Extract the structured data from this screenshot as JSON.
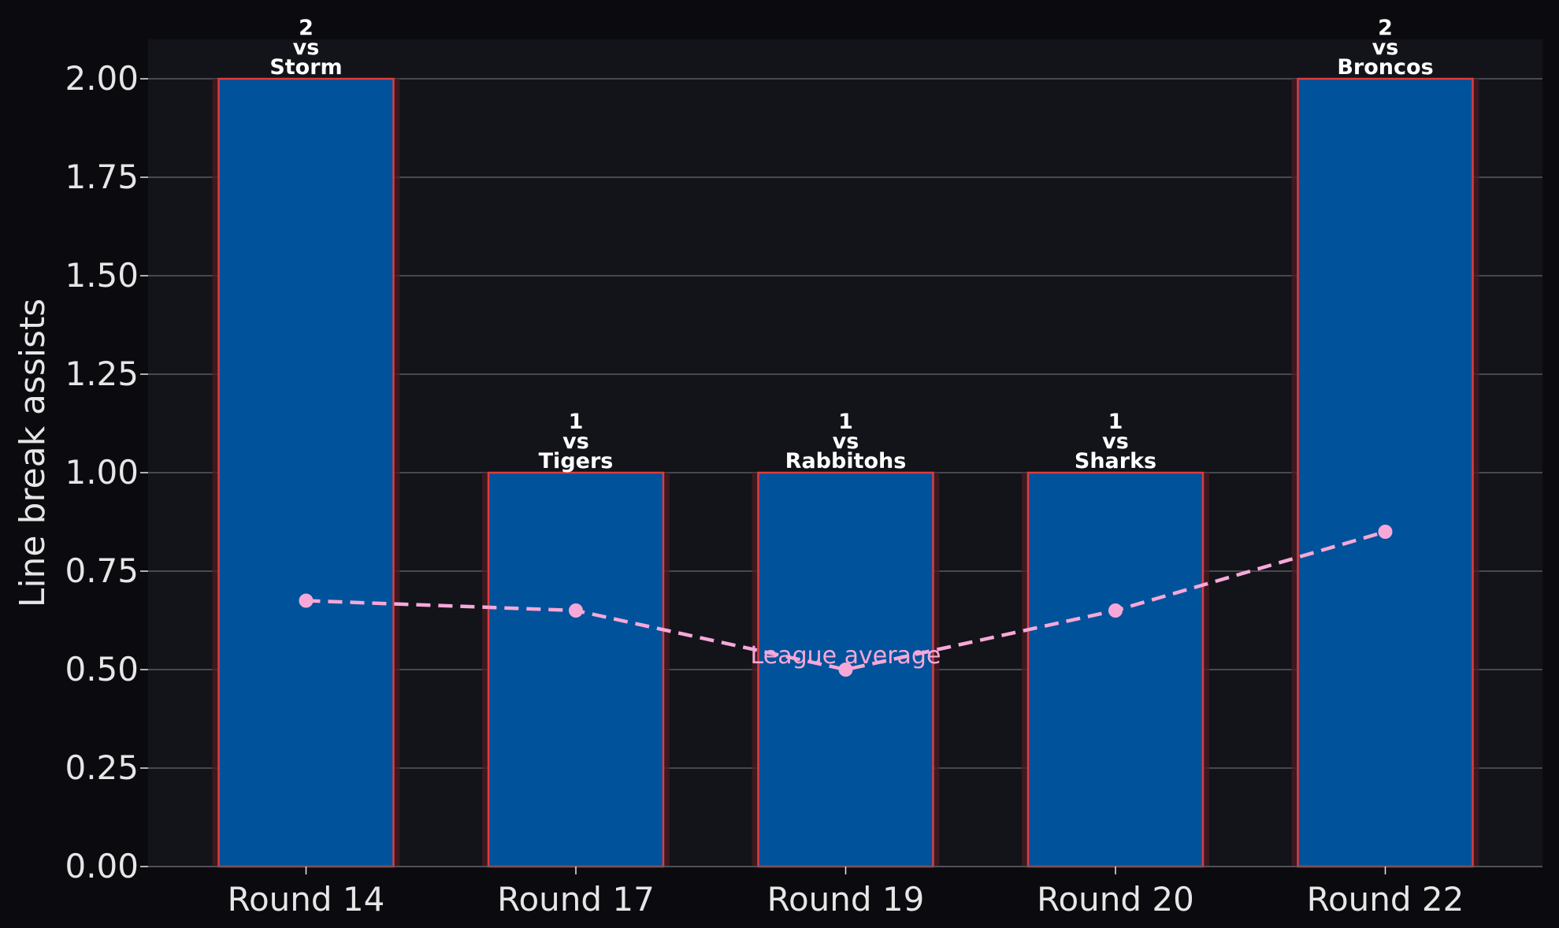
{
  "chart_data": {
    "type": "bar",
    "title": "",
    "xlabel": "",
    "ylabel": "Line break assists",
    "ylim": [
      0,
      2.1
    ],
    "yticks": [
      0,
      0.25,
      0.5,
      0.75,
      1.0,
      1.25,
      1.5,
      1.75,
      2.0
    ],
    "ytick_labels": [
      "0.00",
      "0.25",
      "0.50",
      "0.75",
      "1.00",
      "1.25",
      "1.50",
      "1.75",
      "2.00"
    ],
    "categories": [
      "Round 14",
      "Round 17",
      "Round 19",
      "Round 20",
      "Round 22"
    ],
    "values": [
      2,
      1,
      1,
      1,
      2
    ],
    "bar_labels": [
      {
        "value": "2",
        "vs": "vs",
        "opponent": "Storm"
      },
      {
        "value": "1",
        "vs": "vs",
        "opponent": "Tigers"
      },
      {
        "value": "1",
        "vs": "vs",
        "opponent": "Rabbitohs"
      },
      {
        "value": "1",
        "vs": "vs",
        "opponent": "Sharks"
      },
      {
        "value": "2",
        "vs": "vs",
        "opponent": "Broncos"
      }
    ],
    "line_series": {
      "name": "League average",
      "values": [
        0.675,
        0.65,
        0.5,
        0.65,
        0.85
      ],
      "style": "dashed"
    },
    "grid": true,
    "colors": {
      "figure_bg": "#0b0b0f",
      "axes_bg": "#13131a",
      "bar_fill": "#00529b",
      "bar_edge": "#e03a3e",
      "bar_glow": "#4a1c22",
      "line": "#f7a8d8",
      "grid": "#5a5a60",
      "tick_text": "#e6e6e6",
      "label_text": "#ffffff"
    }
  }
}
